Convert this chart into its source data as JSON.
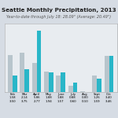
{
  "title": "Seattle Monthly Precipitation, 2013",
  "subtitle": "Year-to-date through July 18: 28.09\" (Average: 20.49\")",
  "months": [
    "Feb",
    "Mar",
    "April",
    "May",
    "June",
    "July",
    "Aug",
    "Sept",
    "Oct"
  ],
  "actual": [
    1.58,
    2.14,
    5.86,
    1.88,
    1.88,
    0.88,
    0.0,
    1.26,
    3.4
  ],
  "average": [
    3.5,
    3.75,
    2.77,
    1.94,
    1.57,
    0.6,
    0.098,
    1.59,
    3.46
  ],
  "bar_actual_color": "#29b6c8",
  "bar_average_color": "#b8c5cc",
  "background_color": "#d6dce4",
  "plot_bg_color": "#e8ecf0",
  "title_fontsize": 5.2,
  "subtitle_fontsize": 3.5,
  "tick_fontsize": 2.8,
  "label_fontsize": 2.8,
  "ylim": [
    0,
    6.5
  ],
  "bar_width": 0.38
}
